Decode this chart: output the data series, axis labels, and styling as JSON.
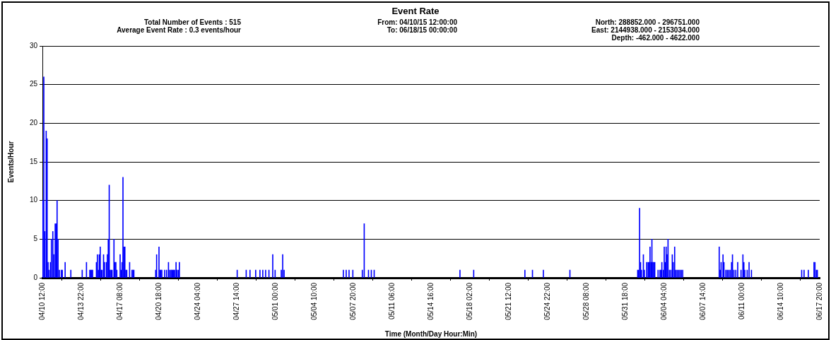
{
  "chart_data": {
    "type": "bar",
    "title": "Event Rate",
    "annotations": [
      "Total Number of Events : 515\nAverage Event Rate : 0.3 events/hour",
      "From: 04/10/15 12:00:00\nTo: 06/18/15 00:00:00",
      "North: 288852.000 - 296751.000\nEast: 2144938.000 - 2153034.000\nDepth: -462.000 - 4622.000"
    ],
    "xlabel": "Time (Month/Day Hour:Min)",
    "ylabel": "Events/Hour",
    "x": [
      "--04-10T13:00",
      "--04-10T15:00",
      "--04-10T17:00",
      "--04-10T20:00",
      "--04-10T22:00",
      "--04-11T00:00",
      "--04-11T02:00",
      "--04-11T05:00",
      "--04-11T07:00",
      "--04-11T10:00",
      "--04-11T12:00",
      "--04-11T15:00",
      "--04-11T17:00",
      "--04-11T19:00",
      "--04-11T21:00",
      "--04-12T00:00",
      "--04-12T04:00",
      "--04-12T06:00",
      "--04-12T12:00",
      "--04-13T00:00",
      "--04-14T00:00",
      "--04-14T09:00",
      "--04-14T16:00",
      "--04-14T18:00",
      "--04-14T20:00",
      "--04-14T22:00",
      "--04-15T06:00",
      "--04-15T08:00",
      "--04-15T10:00",
      "--04-15T12:00",
      "--04-15T14:00",
      "--04-15T16:00",
      "--04-15T18:00",
      "--04-15T21:00",
      "--04-15T23:00",
      "--04-16T03:00",
      "--04-16T05:00",
      "--04-16T07:00",
      "--04-16T09:00",
      "--04-16T11:00",
      "--04-16T13:00",
      "--04-16T15:00",
      "--04-16T19:00",
      "--04-16T21:00",
      "--04-16T23:00",
      "--04-17T01:00",
      "--04-17T08:00",
      "--04-17T10:00",
      "--04-17T12:00",
      "--04-17T14:00",
      "--04-17T16:00",
      "--04-17T18:00",
      "--04-17T20:00",
      "--04-17T22:00",
      "--04-18T04:00",
      "--04-18T09:00",
      "--04-18T11:00",
      "--04-18T13:00",
      "--04-20T11:00",
      "--04-20T13:00",
      "--04-20T18:00",
      "--04-20T20:00",
      "--04-20T22:00",
      "--04-21T00:00",
      "--04-21T06:00",
      "--04-21T10:00",
      "--04-21T14:00",
      "--04-21T16:00",
      "--04-21T19:00",
      "--04-21T21:00",
      "--04-21T23:00",
      "--04-22T01:00",
      "--04-22T03:00",
      "--04-22T06:00",
      "--04-22T08:00",
      "--04-22T11:00",
      "--04-22T13:00",
      "--04-27T15:00",
      "--04-28T10:00",
      "--04-28T18:00",
      "--04-29T06:00",
      "--04-29T15:00",
      "--04-29T21:00",
      "--04-30T03:00",
      "--04-30T10:00",
      "--04-30T18:00",
      "--04-30T23:00",
      "--05-01T12:00",
      "--05-01T15:00",
      "--05-01T18:00",
      "--05-06T23:00",
      "--05-07T05:00",
      "--05-07T11:00",
      "--05-07T19:00",
      "--05-08T15:00",
      "--05-08T19:00",
      "--05-09T04:00",
      "--05-09T10:00",
      "--05-09T16:00",
      "--05-17T05:00",
      "--05-18T10:00",
      "--05-22T22:00",
      "--05-23T14:00",
      "--05-24T13:00",
      "--05-26T21:00",
      "--06-01T20:00",
      "--06-01T22:00",
      "--06-02T00:00",
      "--06-02T02:00",
      "--06-02T04:00",
      "--06-02T08:00",
      "--06-02T10:00",
      "--06-02T15:00",
      "--06-02T18:00",
      "--06-02T20:00",
      "--06-02T22:00",
      "--06-03T00:00",
      "--06-03T02:00",
      "--06-03T04:00",
      "--06-03T06:00",
      "--06-03T08:00",
      "--06-03T15:00",
      "--06-03T19:00",
      "--06-03T21:00",
      "--06-03T23:00",
      "--06-04T02:00",
      "--06-04T04:00",
      "--06-04T06:00",
      "--06-04T08:00",
      "--06-04T10:00",
      "--06-04T12:00",
      "--06-04T15:00",
      "--06-04T18:00",
      "--06-04T21:00",
      "--06-04T23:00",
      "--06-05T02:00",
      "--06-05T04:00",
      "--06-05T07:00",
      "--06-05T10:00",
      "--06-05T13:00",
      "--06-05T16:00",
      "--06-05T19:00",
      "--06-09T00:00",
      "--06-09T02:00",
      "--06-09T04:00",
      "--06-09T08:00",
      "--06-09T10:00",
      "--06-09T14:00",
      "--06-09T17:00",
      "--06-09T20:00",
      "--06-09T23:00",
      "--06-10T02:00",
      "--06-10T04:00",
      "--06-10T07:00",
      "--06-10T11:00",
      "--06-10T15:00",
      "--06-10T22:00",
      "--06-11T02:00",
      "--06-11T04:00",
      "--06-11T06:00",
      "--06-11T11:00",
      "--06-11T15:00",
      "--06-11T20:00",
      "--06-16T06:00",
      "--06-16T11:00",
      "--06-16T20:00",
      "--06-17T08:00",
      "--06-17T10:00",
      "--06-17T13:00",
      "--06-17T15:00"
    ],
    "values": [
      10,
      26,
      6,
      19,
      18,
      2,
      1,
      2,
      5,
      6,
      3,
      7,
      7,
      10,
      5,
      1,
      1,
      1,
      2,
      1,
      1,
      2,
      1,
      1,
      1,
      1,
      2,
      3,
      1,
      3,
      4,
      1,
      1,
      3,
      2,
      2,
      3,
      5,
      12,
      1,
      1,
      1,
      5,
      2,
      2,
      1,
      3,
      1,
      2,
      13,
      4,
      4,
      1,
      1,
      2,
      1,
      1,
      1,
      1,
      3,
      4,
      1,
      1,
      1,
      1,
      1,
      2,
      1,
      1,
      1,
      1,
      1,
      1,
      2,
      1,
      1,
      2,
      1,
      1,
      1,
      1,
      1,
      1,
      1,
      1,
      3,
      1,
      1,
      3,
      1,
      1,
      1,
      1,
      1,
      1,
      7,
      1,
      1,
      1,
      1,
      1,
      1,
      1,
      1,
      1,
      1,
      1,
      9,
      2,
      1,
      3,
      1,
      2,
      2,
      2,
      4,
      2,
      5,
      2,
      2,
      2,
      1,
      1,
      1,
      2,
      1,
      4,
      2,
      4,
      3,
      5,
      1,
      1,
      3,
      2,
      4,
      1,
      1,
      1,
      1,
      1,
      1,
      4,
      1,
      2,
      3,
      2,
      1,
      1,
      1,
      1,
      2,
      3,
      1,
      1,
      2,
      1,
      3,
      2,
      1,
      1,
      2,
      1,
      1,
      1,
      1,
      2,
      2,
      1,
      1
    ],
    "color": "#0000ff",
    "xlim": [
      "--04-10T12:00",
      "--06-17T20:00"
    ],
    "xticks": [
      {
        "value": "--04-10T12:00",
        "label": "04/10 12:00"
      },
      {
        "value": "--04-13T22:00",
        "label": "04/13 22:00"
      },
      {
        "value": "--04-17T08:00",
        "label": "04/17 08:00"
      },
      {
        "value": "--04-20T18:00",
        "label": "04/20 18:00"
      },
      {
        "value": "--04-24T04:00",
        "label": "04/24 04:00"
      },
      {
        "value": "--04-27T14:00",
        "label": "04/27 14:00"
      },
      {
        "value": "--05-01T00:00",
        "label": "05/01 00:00"
      },
      {
        "value": "--05-04T10:00",
        "label": "05/04 10:00"
      },
      {
        "value": "--05-07T20:00",
        "label": "05/07 20:00"
      },
      {
        "value": "--05-11T06:00",
        "label": "05/11 06:00"
      },
      {
        "value": "--05-14T16:00",
        "label": "05/14 16:00"
      },
      {
        "value": "--05-18T02:00",
        "label": "05/18 02:00"
      },
      {
        "value": "--05-21T12:00",
        "label": "05/21 12:00"
      },
      {
        "value": "--05-24T22:00",
        "label": "05/24 22:00"
      },
      {
        "value": "--05-28T08:00",
        "label": "05/28 08:00"
      },
      {
        "value": "--05-31T18:00",
        "label": "05/31 18:00"
      },
      {
        "value": "--06-04T04:00",
        "label": "06/04 04:00"
      },
      {
        "value": "--06-07T14:00",
        "label": "06/07 14:00"
      },
      {
        "value": "--06-11T00:00",
        "label": "06/11 00:00"
      },
      {
        "value": "--06-14T10:00",
        "label": "06/14 10:00"
      },
      {
        "value": "--06-17T20:00",
        "label": "06/17 20:00"
      }
    ],
    "ylim": [
      0,
      30
    ],
    "yticks": [
      0,
      5,
      10,
      15,
      20,
      25,
      30
    ],
    "grid": "y"
  }
}
